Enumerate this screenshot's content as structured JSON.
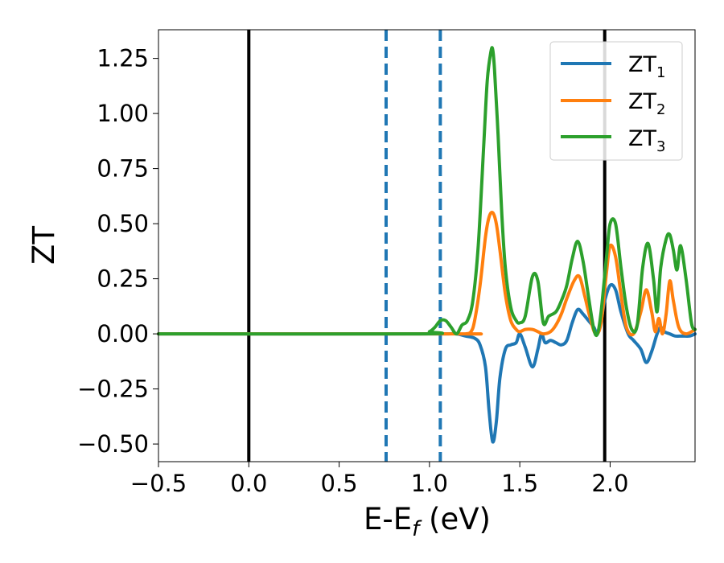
{
  "chart_data": {
    "type": "line",
    "xlabel_main": "E-E",
    "xlabel_sub": "f",
    "xlabel_unit": " (eV)",
    "ylabel": "ZT",
    "xlim": [
      -0.5,
      2.47
    ],
    "ylim": [
      -0.58,
      1.38
    ],
    "xticks": [
      -0.5,
      0.0,
      0.5,
      1.0,
      1.5,
      2.0
    ],
    "xtick_labels": [
      "−0.5",
      "0.0",
      "0.5",
      "1.0",
      "1.5",
      "2.0"
    ],
    "yticks": [
      -0.5,
      -0.25,
      0.0,
      0.25,
      0.5,
      0.75,
      1.0,
      1.25
    ],
    "ytick_labels": [
      "−0.50",
      "−0.25",
      "0.00",
      "0.25",
      "0.50",
      "0.75",
      "1.00",
      "1.25"
    ],
    "grid": false,
    "legend_position": "top-right",
    "vertical_lines": [
      {
        "x": 0.0,
        "style": "solid",
        "color": "#000000"
      },
      {
        "x": 1.97,
        "style": "solid",
        "color": "#000000"
      },
      {
        "x": 0.76,
        "style": "dashed",
        "color": "#1f77b4"
      },
      {
        "x": 1.06,
        "style": "dashed",
        "color": "#1f77b4"
      }
    ],
    "series": [
      {
        "name_main": "ZT",
        "name_sub": "1",
        "color": "#1f77b4",
        "x": [
          -0.5,
          0.9,
          1.0,
          1.05,
          1.1,
          1.15,
          1.2,
          1.25,
          1.28,
          1.31,
          1.33,
          1.35,
          1.37,
          1.39,
          1.42,
          1.45,
          1.48,
          1.5,
          1.53,
          1.57,
          1.6,
          1.62,
          1.64,
          1.67,
          1.7,
          1.73,
          1.76,
          1.79,
          1.82,
          1.85,
          1.88,
          1.91,
          1.93,
          1.95,
          1.97,
          2.0,
          2.03,
          2.06,
          2.1,
          2.13,
          2.17,
          2.2,
          2.23,
          2.26,
          2.28,
          2.3,
          2.33,
          2.36,
          2.4,
          2.44,
          2.47
        ],
        "y": [
          0.0,
          0.0,
          0.0,
          0.0,
          0.0,
          0.0,
          -0.01,
          -0.02,
          -0.05,
          -0.15,
          -0.35,
          -0.49,
          -0.4,
          -0.2,
          -0.07,
          -0.05,
          -0.04,
          0.0,
          -0.06,
          -0.15,
          -0.07,
          0.0,
          -0.04,
          -0.03,
          -0.04,
          -0.05,
          -0.03,
          0.05,
          0.11,
          0.09,
          0.06,
          0.03,
          0.0,
          0.06,
          0.15,
          0.22,
          0.2,
          0.1,
          0.0,
          -0.03,
          -0.07,
          -0.13,
          -0.08,
          0.0,
          0.03,
          0.01,
          0.0,
          -0.01,
          -0.01,
          -0.01,
          0.0
        ]
      },
      {
        "name_main": "ZT",
        "name_sub": "2",
        "color": "#ff7f0e",
        "x": [
          -0.5,
          1.15,
          1.2,
          1.23,
          1.25,
          1.28,
          1.31,
          1.33,
          1.35,
          1.37,
          1.39,
          1.42,
          1.45,
          1.48,
          1.5,
          1.53,
          1.57,
          1.6,
          1.63,
          1.67,
          1.7,
          1.73,
          1.76,
          1.8,
          1.83,
          1.86,
          1.89,
          1.92,
          1.95,
          1.98,
          2.0,
          2.03,
          2.06,
          2.09,
          2.13,
          2.17,
          2.2,
          2.23,
          2.25,
          2.27,
          2.29,
          2.31,
          2.33,
          2.35,
          2.38,
          2.42,
          2.47
        ],
        "y": [
          0.0,
          0.0,
          0.0,
          0.01,
          0.06,
          0.22,
          0.44,
          0.53,
          0.55,
          0.5,
          0.38,
          0.18,
          0.06,
          0.02,
          0.01,
          0.02,
          0.02,
          0.01,
          0.0,
          0.01,
          0.04,
          0.09,
          0.16,
          0.24,
          0.26,
          0.17,
          0.07,
          0.0,
          0.05,
          0.28,
          0.4,
          0.35,
          0.18,
          0.03,
          0.0,
          0.1,
          0.2,
          0.1,
          0.01,
          0.07,
          0.0,
          0.09,
          0.24,
          0.15,
          0.03,
          0.0,
          0.02
        ]
      },
      {
        "name_main": "ZT",
        "name_sub": "3",
        "color": "#2ca02c",
        "x": [
          -0.5,
          0.95,
          1.0,
          1.03,
          1.06,
          1.09,
          1.12,
          1.15,
          1.18,
          1.21,
          1.24,
          1.27,
          1.3,
          1.32,
          1.34,
          1.35,
          1.36,
          1.38,
          1.4,
          1.42,
          1.45,
          1.48,
          1.5,
          1.53,
          1.57,
          1.6,
          1.63,
          1.66,
          1.7,
          1.73,
          1.76,
          1.79,
          1.82,
          1.85,
          1.88,
          1.91,
          1.93,
          1.95,
          1.98,
          2.0,
          2.03,
          2.06,
          2.09,
          2.12,
          2.15,
          2.18,
          2.21,
          2.24,
          2.26,
          2.28,
          2.31,
          2.33,
          2.35,
          2.37,
          2.39,
          2.42,
          2.45,
          2.47
        ],
        "y": [
          0.0,
          0.0,
          0.01,
          0.03,
          0.06,
          0.06,
          0.03,
          0.0,
          0.04,
          0.06,
          0.15,
          0.4,
          0.85,
          1.15,
          1.28,
          1.29,
          1.2,
          0.9,
          0.55,
          0.3,
          0.12,
          0.06,
          0.05,
          0.08,
          0.26,
          0.24,
          0.05,
          0.08,
          0.1,
          0.15,
          0.22,
          0.34,
          0.42,
          0.33,
          0.17,
          0.02,
          0.0,
          0.1,
          0.35,
          0.5,
          0.5,
          0.3,
          0.12,
          0.02,
          0.04,
          0.3,
          0.41,
          0.25,
          0.1,
          0.3,
          0.43,
          0.45,
          0.38,
          0.29,
          0.4,
          0.25,
          0.05,
          0.02
        ]
      }
    ]
  }
}
